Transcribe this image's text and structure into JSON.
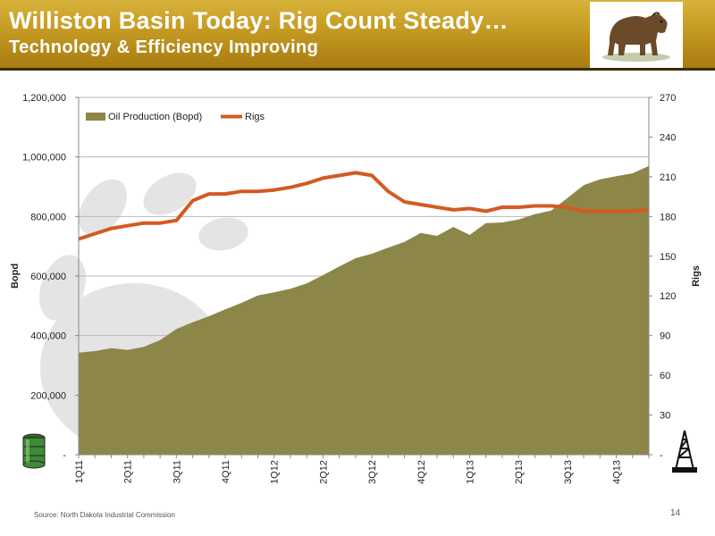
{
  "slide": {
    "title": "Williston Basin Today: Rig Count Steady…",
    "subtitle": "Technology & Efficiency Improving",
    "source": "Source: North Dakota Industrial Commission",
    "page_number": "14",
    "logo_icon": "bear-icon",
    "left_icon": "oil-barrel-icon",
    "right_icon": "oil-rig-icon"
  },
  "chart_data": {
    "type": "area",
    "title": "",
    "xlabel": "",
    "ylabel": "Bopd",
    "y2label": "Rigs",
    "ylim": [
      0,
      1200000
    ],
    "y2lim": [
      0,
      270
    ],
    "yticks": [
      "-",
      "200,000",
      "400,000",
      "600,000",
      "800,000",
      "1,000,000",
      "1,200,000"
    ],
    "y2ticks": [
      "-",
      "30",
      "60",
      "90",
      "120",
      "150",
      "180",
      "210",
      "240",
      "270"
    ],
    "x_tick_labels": [
      "1Q11",
      "2Q11",
      "3Q11",
      "4Q11",
      "1Q12",
      "2Q12",
      "3Q12",
      "4Q12",
      "1Q13",
      "2Q13",
      "3Q13",
      "4Q13"
    ],
    "points_per_quarter": 3,
    "legend": "top-left",
    "grid": true,
    "series": [
      {
        "name": "Oil Production (Bopd)",
        "type": "area",
        "axis": "left",
        "color": "#8c8748",
        "values": [
          343000,
          348000,
          358000,
          352000,
          362000,
          385000,
          422000,
          445000,
          465000,
          488000,
          510000,
          535000,
          545000,
          557000,
          575000,
          603000,
          632000,
          660000,
          675000,
          695000,
          715000,
          745000,
          735000,
          765000,
          738000,
          778000,
          780000,
          790000,
          808000,
          820000,
          862000,
          905000,
          925000,
          935000,
          945000,
          970000
        ]
      },
      {
        "name": "Rigs",
        "type": "line",
        "axis": "right",
        "color": "#d45a20",
        "values": [
          163,
          167,
          171,
          173,
          175,
          175,
          177,
          192,
          197,
          197,
          199,
          199,
          200,
          202,
          205,
          209,
          211,
          213,
          211,
          199,
          191,
          189,
          187,
          185,
          186,
          184,
          187,
          187,
          188,
          188,
          187,
          184,
          184,
          184,
          184,
          185
        ]
      }
    ]
  }
}
